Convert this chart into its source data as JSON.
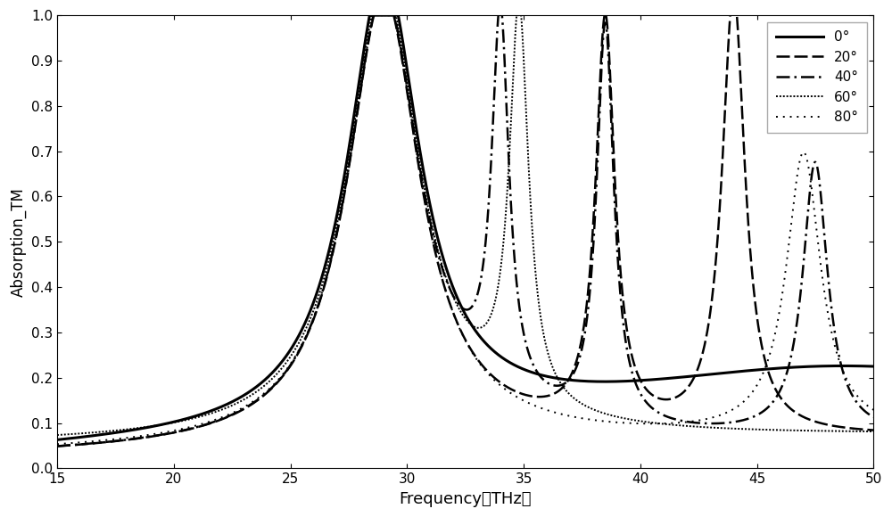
{
  "xlabel": "Frequency（THz）",
  "ylabel": "Absorption_TM",
  "xlim": [
    15,
    50
  ],
  "ylim": [
    0,
    1.0
  ],
  "yticks": [
    0,
    0.1,
    0.2,
    0.3,
    0.4,
    0.5,
    0.6,
    0.7,
    0.8,
    0.9,
    1
  ],
  "xticks": [
    15,
    20,
    25,
    30,
    35,
    40,
    45,
    50
  ],
  "legend_labels": [
    "0°",
    "20°",
    "40°",
    "60°",
    "80°"
  ],
  "figsize": [
    10,
    5.8
  ],
  "dpi": 100
}
